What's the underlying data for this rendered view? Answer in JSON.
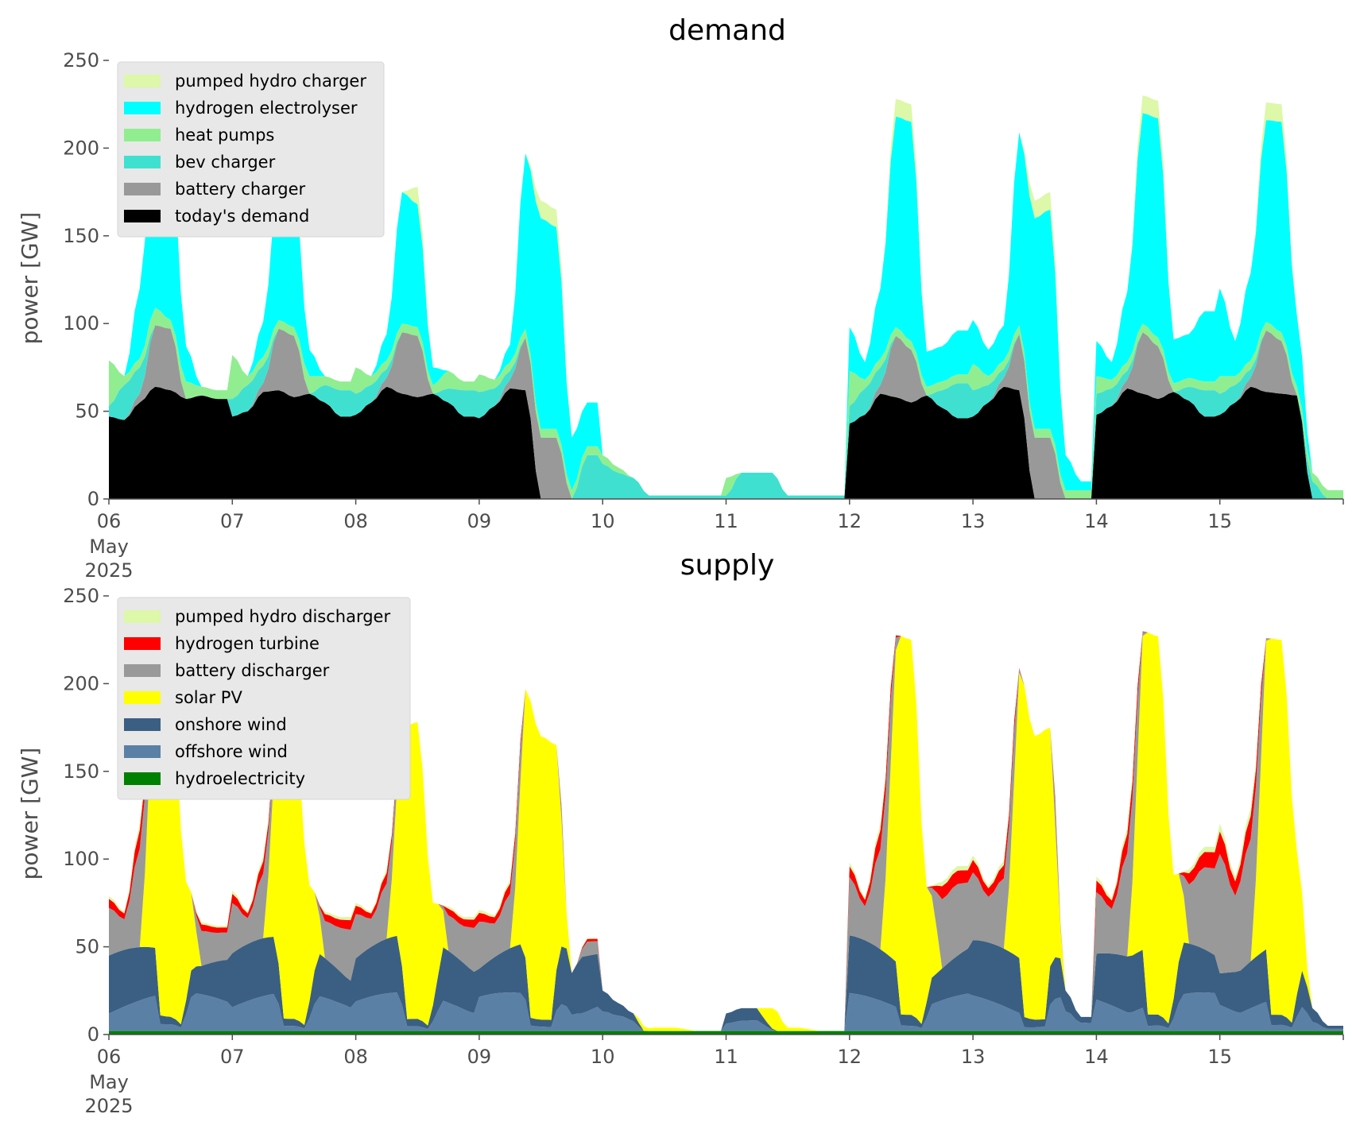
{
  "chart_data": [
    {
      "type": "area",
      "stacked": true,
      "title": "demand",
      "xlabel": "",
      "ylabel": "power [GW]",
      "ylim": [
        0,
        250
      ],
      "yticks": [
        0,
        50,
        100,
        150,
        200,
        250
      ],
      "xlim": [
        "2025-05-06T00:00",
        "2025-05-16T00:00"
      ],
      "xtick_labels": [
        "06",
        "07",
        "08",
        "09",
        "10",
        "11",
        "12",
        "13",
        "14",
        "15"
      ],
      "xtick_sublabels": [
        "May",
        "2025"
      ],
      "legend_position": "upper-left",
      "grid": false,
      "series": [
        {
          "name": "today's demand",
          "color": "#000000",
          "legend_order": 6
        },
        {
          "name": "battery charger",
          "color": "#999999",
          "legend_order": 5
        },
        {
          "name": "bev charger",
          "color": "#40e0d0",
          "legend_order": 4
        },
        {
          "name": "heat pumps",
          "color": "#90ee90",
          "legend_order": 3
        },
        {
          "name": "hydrogen electrolyser",
          "color": "#00ffff",
          "legend_order": 2
        },
        {
          "name": "pumped hydro charger",
          "color": "#dcf8a8",
          "legend_order": 1
        }
      ],
      "approx_values_by_day_hour_GW": {
        "note_hours": [
          0,
          3,
          6,
          9,
          12,
          15,
          18,
          21
        ],
        "today's demand": {
          "06": [
            47,
            45,
            55,
            64,
            62,
            57,
            59,
            57
          ],
          "07": [
            47,
            50,
            61,
            62,
            58,
            60,
            55,
            47
          ],
          "08": [
            48,
            55,
            64,
            60,
            58,
            60,
            55,
            47
          ],
          "09": [
            46,
            53,
            63,
            62,
            0,
            0,
            0,
            0
          ],
          "10": [
            0,
            0,
            0,
            0,
            0,
            0,
            0,
            0
          ],
          "11": [
            0,
            0,
            0,
            0,
            0,
            0,
            0,
            0
          ],
          "12": [
            43,
            48,
            60,
            58,
            55,
            59,
            52,
            46
          ],
          "13": [
            47,
            55,
            64,
            62,
            0,
            0,
            0,
            0
          ],
          "14": [
            48,
            53,
            63,
            60,
            57,
            61,
            56,
            47
          ],
          "15": [
            48,
            55,
            64,
            61,
            60,
            59,
            0,
            0
          ]
        },
        "battery charger": {
          "06": [
            0,
            0,
            5,
            35,
            35,
            0,
            0,
            0
          ],
          "07": [
            0,
            0,
            5,
            35,
            35,
            0,
            0,
            0
          ],
          "08": [
            0,
            0,
            5,
            35,
            35,
            0,
            0,
            0
          ],
          "09": [
            0,
            0,
            5,
            30,
            35,
            35,
            0,
            0
          ],
          "10": [
            0,
            0,
            0,
            0,
            0,
            0,
            0,
            0
          ],
          "11": [
            0,
            0,
            0,
            0,
            0,
            0,
            0,
            0
          ],
          "12": [
            0,
            0,
            5,
            35,
            30,
            0,
            0,
            0
          ],
          "13": [
            0,
            0,
            5,
            32,
            35,
            35,
            0,
            0
          ],
          "14": [
            0,
            0,
            5,
            35,
            30,
            0,
            0,
            0
          ],
          "15": [
            0,
            0,
            5,
            35,
            30,
            0,
            0,
            0
          ]
        },
        "bev charger": {
          "06": [
            6,
            20,
            15,
            0,
            0,
            0,
            0,
            0
          ],
          "07": [
            10,
            15,
            10,
            0,
            0,
            0,
            10,
            15
          ],
          "08": [
            12,
            10,
            5,
            0,
            0,
            0,
            8,
            15
          ],
          "09": [
            15,
            10,
            5,
            0,
            0,
            0,
            0,
            25
          ],
          "10": [
            20,
            15,
            12,
            2,
            2,
            2,
            2,
            2
          ],
          "11": [
            2,
            15,
            15,
            15,
            2,
            2,
            2,
            2
          ],
          "12": [
            10,
            15,
            10,
            0,
            0,
            0,
            10,
            20
          ],
          "13": [
            15,
            10,
            5,
            0,
            0,
            0,
            0,
            0
          ],
          "14": [
            12,
            10,
            5,
            0,
            0,
            0,
            8,
            15
          ],
          "15": [
            12,
            10,
            5,
            0,
            0,
            0,
            10,
            0
          ]
        },
        "heat pumps": {
          "06": [
            26,
            5,
            5,
            10,
            5,
            10,
            5,
            5
          ],
          "07": [
            25,
            5,
            5,
            5,
            5,
            10,
            5,
            5
          ],
          "08": [
            15,
            5,
            5,
            5,
            5,
            5,
            10,
            5
          ],
          "09": [
            10,
            5,
            5,
            5,
            5,
            5,
            5,
            5
          ],
          "10": [
            5,
            3,
            0,
            0,
            0,
            0,
            0,
            0
          ],
          "11": [
            10,
            0,
            0,
            0,
            0,
            0,
            0,
            0
          ],
          "12": [
            20,
            5,
            5,
            5,
            5,
            5,
            5,
            5
          ],
          "13": [
            15,
            5,
            5,
            5,
            5,
            5,
            5,
            5
          ],
          "14": [
            10,
            5,
            5,
            5,
            5,
            5,
            5,
            5
          ],
          "15": [
            10,
            5,
            5,
            5,
            5,
            5,
            5,
            5
          ]
        },
        "hydrogen electrolyser": {
          "06": [
            0,
            0,
            40,
            115,
            100,
            20,
            0,
            0
          ],
          "07": [
            0,
            0,
            20,
            80,
            80,
            15,
            0,
            0
          ],
          "08": [
            0,
            0,
            15,
            75,
            70,
            10,
            0,
            0
          ],
          "09": [
            0,
            0,
            10,
            100,
            120,
            115,
            30,
            25
          ],
          "10": [
            0,
            0,
            0,
            0,
            0,
            0,
            0,
            0
          ],
          "11": [
            0,
            0,
            0,
            0,
            0,
            0,
            0,
            0
          ],
          "12": [
            25,
            10,
            40,
            120,
            125,
            20,
            20,
            25
          ],
          "13": [
            25,
            15,
            20,
            110,
            120,
            125,
            20,
            5
          ],
          "14": [
            20,
            10,
            40,
            120,
            125,
            25,
            25,
            40
          ],
          "15": [
            50,
            20,
            50,
            115,
            120,
            40,
            0,
            0
          ]
        },
        "pumped hydro charger": {
          "06": [
            0,
            0,
            0,
            0,
            0,
            0,
            0,
            0
          ],
          "07": [
            0,
            0,
            0,
            0,
            0,
            0,
            0,
            0
          ],
          "08": [
            0,
            0,
            0,
            0,
            10,
            0,
            0,
            0
          ],
          "09": [
            0,
            0,
            0,
            0,
            10,
            10,
            0,
            0
          ],
          "10": [
            0,
            0,
            0,
            0,
            0,
            0,
            0,
            0
          ],
          "11": [
            0,
            0,
            0,
            0,
            0,
            0,
            0,
            0
          ],
          "12": [
            0,
            0,
            0,
            10,
            10,
            0,
            0,
            0
          ],
          "13": [
            0,
            0,
            0,
            0,
            10,
            10,
            0,
            0
          ],
          "14": [
            0,
            0,
            0,
            10,
            10,
            0,
            0,
            0
          ],
          "15": [
            0,
            0,
            0,
            10,
            10,
            0,
            0,
            0
          ]
        }
      }
    },
    {
      "type": "area",
      "stacked": true,
      "title": "supply",
      "xlabel": "",
      "ylabel": "power [GW]",
      "ylim": [
        0,
        250
      ],
      "yticks": [
        0,
        50,
        100,
        150,
        200,
        250
      ],
      "xlim": [
        "2025-05-06T00:00",
        "2025-05-16T00:00"
      ],
      "xtick_labels": [
        "06",
        "07",
        "08",
        "09",
        "10",
        "11",
        "12",
        "13",
        "14",
        "15"
      ],
      "xtick_sublabels": [
        "May",
        "2025"
      ],
      "legend_position": "upper-left",
      "grid": false,
      "series": [
        {
          "name": "hydroelectricity",
          "color": "#008000",
          "legend_order": 7
        },
        {
          "name": "offshore wind",
          "color": "#5b80a5",
          "legend_order": 6
        },
        {
          "name": "onshore wind",
          "color": "#3b5f82",
          "legend_order": 5
        },
        {
          "name": "solar PV",
          "color": "#ffff00",
          "legend_order": 4
        },
        {
          "name": "battery discharger",
          "color": "#999999",
          "legend_order": 3
        },
        {
          "name": "hydrogen turbine",
          "color": "#ff0000",
          "legend_order": 2
        },
        {
          "name": "pumped hydro discharger",
          "color": "#dcf8a8",
          "legend_order": 1
        }
      ]
    }
  ],
  "legend_demand": [
    "pumped hydro charger",
    "hydrogen electrolyser",
    "heat pumps",
    "bev charger",
    "battery charger",
    "today's demand"
  ],
  "legend_supply": [
    "pumped hydro discharger",
    "hydrogen turbine",
    "battery discharger",
    "solar PV",
    "onshore wind",
    "offshore wind",
    "hydroelectricity"
  ]
}
